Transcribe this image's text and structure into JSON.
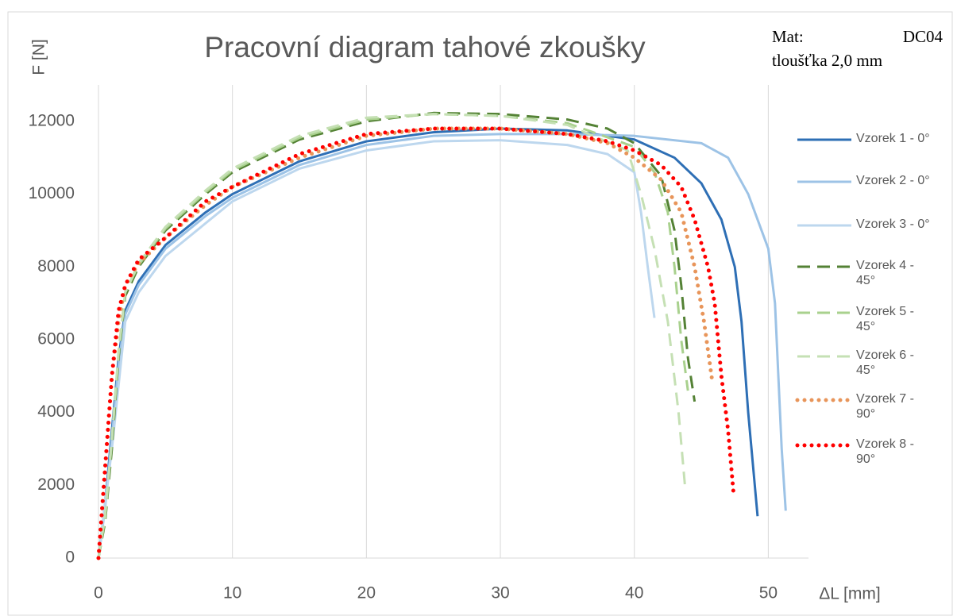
{
  "chart_data": {
    "type": "line",
    "title": "Pracovní diagram tahové zkoušky",
    "annotations": [
      "Mat:",
      "DC04",
      "tloušťka 2,0 mm"
    ],
    "x_label": "ΔL [mm]",
    "y_label": "F [N]",
    "xlim": [
      0,
      53
    ],
    "xticks": [
      0,
      10,
      20,
      30,
      40,
      50
    ],
    "ylim": [
      0,
      13000
    ],
    "yticks": [
      0,
      2000,
      4000,
      6000,
      8000,
      10000,
      12000
    ],
    "grid": "x",
    "legend": "right",
    "series": [
      {
        "name": "Vzorek 1 - 0°",
        "color": "#2e6fb5",
        "style": "solid",
        "x": [
          0,
          0.5,
          1,
          1.5,
          2,
          3,
          5,
          8,
          10,
          15,
          20,
          25,
          30,
          35,
          40,
          43,
          45,
          46.5,
          47.5,
          48,
          48.5,
          49.2
        ],
        "values": [
          0,
          1500,
          3500,
          5500,
          6800,
          7600,
          8600,
          9500,
          10000,
          10900,
          11450,
          11700,
          11800,
          11750,
          11500,
          11000,
          10300,
          9300,
          8000,
          6500,
          4000,
          1150
        ]
      },
      {
        "name": "Vzorek 2 - 0°",
        "color": "#9dc3e6",
        "style": "solid",
        "x": [
          0,
          0.5,
          1,
          1.5,
          2,
          3,
          5,
          8,
          10,
          15,
          20,
          25,
          30,
          35,
          40,
          45,
          47,
          48.5,
          50,
          50.5,
          51,
          51.3
        ],
        "values": [
          0,
          1400,
          3300,
          5300,
          6700,
          7500,
          8500,
          9400,
          9900,
          10800,
          11350,
          11600,
          11650,
          11650,
          11600,
          11400,
          11000,
          10000,
          8500,
          7000,
          3000,
          1300
        ]
      },
      {
        "name": "Vzorek 3 - 0°",
        "color": "#bdd7ee",
        "style": "solid",
        "x": [
          0,
          1,
          2,
          3,
          5,
          10,
          15,
          20,
          25,
          30,
          35,
          38,
          40,
          40.5,
          41,
          41.5
        ],
        "values": [
          0,
          3000,
          6500,
          7300,
          8300,
          9800,
          10700,
          11200,
          11450,
          11480,
          11350,
          11100,
          10600,
          9500,
          8000,
          6600
        ]
      },
      {
        "name": "Vzorek 4 - 45°",
        "color": "#548235",
        "style": "dashed",
        "x": [
          0,
          0.5,
          1,
          1.5,
          2,
          3,
          5,
          8,
          10,
          15,
          20,
          25,
          30,
          35,
          38,
          40,
          42,
          43,
          43.5,
          44,
          44.5
        ],
        "values": [
          0,
          1000,
          3000,
          5500,
          7200,
          8000,
          9000,
          10000,
          10600,
          11500,
          12000,
          12230,
          12200,
          12050,
          11800,
          11400,
          10500,
          9000,
          7500,
          5500,
          4300
        ]
      },
      {
        "name": "Vzorek 5 - 45°",
        "color": "#a9d18e",
        "style": "dashed",
        "x": [
          0,
          0.5,
          1,
          1.5,
          2,
          3,
          5,
          8,
          10,
          15,
          20,
          25,
          30,
          35,
          40,
          41.5,
          42.5,
          43,
          43.5,
          44
        ],
        "values": [
          0,
          1100,
          3200,
          5600,
          7300,
          8050,
          9050,
          10050,
          10650,
          11550,
          12050,
          12200,
          12150,
          11950,
          11300,
          10600,
          9500,
          8000,
          6000,
          4600
        ]
      },
      {
        "name": "Vzorek 6 - 45°",
        "color": "#c5e0b4",
        "style": "dashed",
        "x": [
          0,
          0.5,
          1,
          1.5,
          2,
          3,
          5,
          8,
          10,
          15,
          20,
          25,
          30,
          35,
          39.5,
          40.5,
          41.5,
          42.5,
          43.3,
          43.8
        ],
        "values": [
          0,
          1200,
          3300,
          5700,
          7300,
          8100,
          9100,
          10100,
          10700,
          11600,
          12100,
          12200,
          12150,
          11900,
          11200,
          10000,
          8500,
          6500,
          4000,
          1900
        ]
      },
      {
        "name": "Vzorek 7 - 90°",
        "color": "#e8955a",
        "style": "dotted",
        "x": [
          0,
          0.3,
          0.7,
          1,
          1.5,
          2,
          3,
          5,
          8,
          10,
          15,
          20,
          25,
          30,
          35,
          38,
          40,
          42,
          43.5,
          44.5,
          45.2,
          45.8
        ],
        "values": [
          0,
          1500,
          3500,
          5000,
          6500,
          7500,
          8100,
          8800,
          9700,
          10200,
          11000,
          11600,
          11800,
          11800,
          11650,
          11400,
          11000,
          10400,
          9500,
          8000,
          6500,
          4900
        ]
      },
      {
        "name": "Vzorek 8 - 90°",
        "color": "#ff0000",
        "style": "dotted",
        "x": [
          0,
          0.3,
          0.7,
          1,
          1.5,
          2,
          3,
          5,
          8,
          10,
          15,
          20,
          25,
          30,
          35,
          38,
          40,
          42,
          43.5,
          44.5,
          45.5,
          46,
          46.5,
          47,
          47.4
        ],
        "values": [
          0,
          1500,
          3500,
          5000,
          6800,
          7500,
          8200,
          8800,
          9800,
          10200,
          11100,
          11650,
          11800,
          11800,
          11650,
          11450,
          11200,
          10800,
          10200,
          9300,
          8000,
          7000,
          5000,
          3500,
          1800
        ]
      }
    ]
  }
}
